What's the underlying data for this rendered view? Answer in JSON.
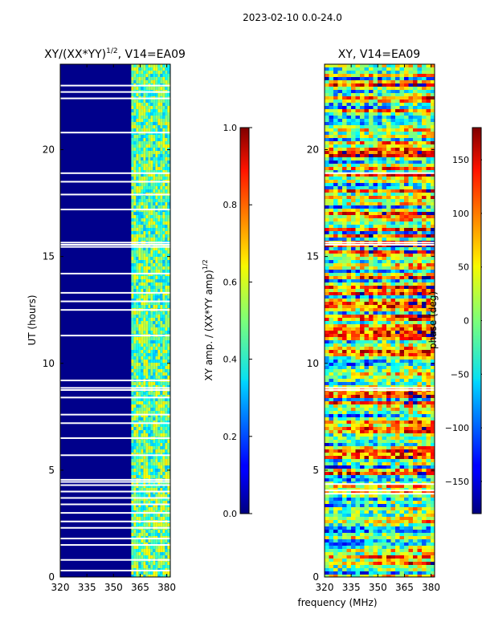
{
  "figure_title": "2023-02-10 0.0-24.0",
  "colors": {
    "left_background": "#00008b",
    "gap_color": "#ffffff"
  },
  "chart_data": [
    {
      "type": "heatmap",
      "title_main": "XY/(XX*YY)",
      "title_sup": "1/2",
      "title_rest": ", V14=EA09",
      "xlabel": "",
      "ylabel": "UT (hours)",
      "x_ticks": [
        320,
        335,
        350,
        365,
        380
      ],
      "xlim": [
        320,
        382
      ],
      "y_ticks": [
        0,
        5,
        10,
        15,
        20
      ],
      "ylim": [
        0,
        24
      ],
      "signal_band_mhz": [
        360,
        380
      ],
      "gap_hours": [
        0.3,
        0.8,
        1.5,
        1.8,
        2.3,
        2.6,
        3.0,
        3.4,
        3.7,
        4.0,
        4.3,
        4.45,
        4.55,
        5.7,
        6.5,
        7.2,
        7.6,
        8.4,
        8.75,
        8.85,
        9.2,
        11.3,
        12.5,
        12.9,
        13.3,
        14.2,
        15.45,
        15.55,
        15.65,
        17.2,
        17.9,
        18.5,
        18.9,
        20.8,
        22.4,
        22.7,
        23.0
      ],
      "colorbar": {
        "label_main": "XY amp. / (XX*YY amp)",
        "label_sup": "1/2",
        "ticks": [
          "0.0",
          "0.2",
          "0.4",
          "0.6",
          "0.8",
          "1.0"
        ],
        "range": [
          0,
          1
        ]
      }
    },
    {
      "type": "heatmap",
      "title": "XY, V14=EA09",
      "xlabel": "frequency (MHz)",
      "ylabel": "",
      "x_ticks": [
        320,
        335,
        350,
        365,
        380
      ],
      "xlim": [
        320,
        382
      ],
      "y_ticks": [
        0,
        5,
        10,
        15,
        20
      ],
      "ylim": [
        0,
        24
      ],
      "gap_hours": [
        3.9,
        4.05,
        4.35,
        8.75,
        8.85,
        15.55,
        15.65,
        18.9
      ],
      "colorbar": {
        "label": "phase (deg)",
        "ticks": [
          "150",
          "100",
          "50",
          "0",
          "−50",
          "−100",
          "−150"
        ],
        "range": [
          -180,
          180
        ]
      }
    }
  ]
}
